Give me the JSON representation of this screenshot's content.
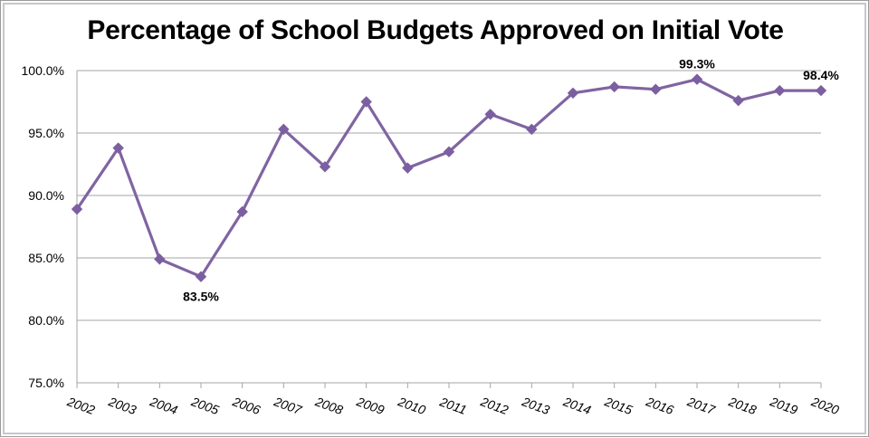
{
  "chart_data": {
    "type": "line",
    "title": "Percentage of School Budgets Approved on Initial Vote",
    "xlabel": "",
    "ylabel": "",
    "categories": [
      "2002",
      "2003",
      "2004",
      "2005",
      "2006",
      "2007",
      "2008",
      "2009",
      "2010",
      "2011",
      "2012",
      "2013",
      "2014",
      "2015",
      "2016",
      "2017",
      "2018",
      "2019",
      "2020"
    ],
    "series": [
      {
        "values": [
          88.9,
          93.8,
          84.9,
          83.5,
          88.7,
          95.3,
          92.3,
          97.5,
          92.2,
          93.5,
          96.5,
          95.3,
          98.2,
          98.7,
          98.5,
          99.3,
          97.6,
          98.4,
          98.4
        ]
      }
    ],
    "ylim": [
      75.0,
      100.0
    ],
    "yticks": [
      75.0,
      80.0,
      85.0,
      90.0,
      95.0,
      100.0
    ],
    "ytick_labels": [
      "75.0%",
      "80.0%",
      "85.0%",
      "90.0%",
      "95.0%",
      "100.0%"
    ],
    "data_labels": [
      {
        "category": "2005",
        "text": "83.5%",
        "placement": "below"
      },
      {
        "category": "2017",
        "text": "99.3%",
        "placement": "above"
      },
      {
        "category": "2020",
        "text": "98.4%",
        "placement": "above"
      }
    ],
    "grid": "horizontal",
    "legend": "none",
    "colors": {
      "line": "#8064a2",
      "marker": "#7b5fa0",
      "grid": "#a6a6a6",
      "axis": "#a6a6a6"
    }
  }
}
